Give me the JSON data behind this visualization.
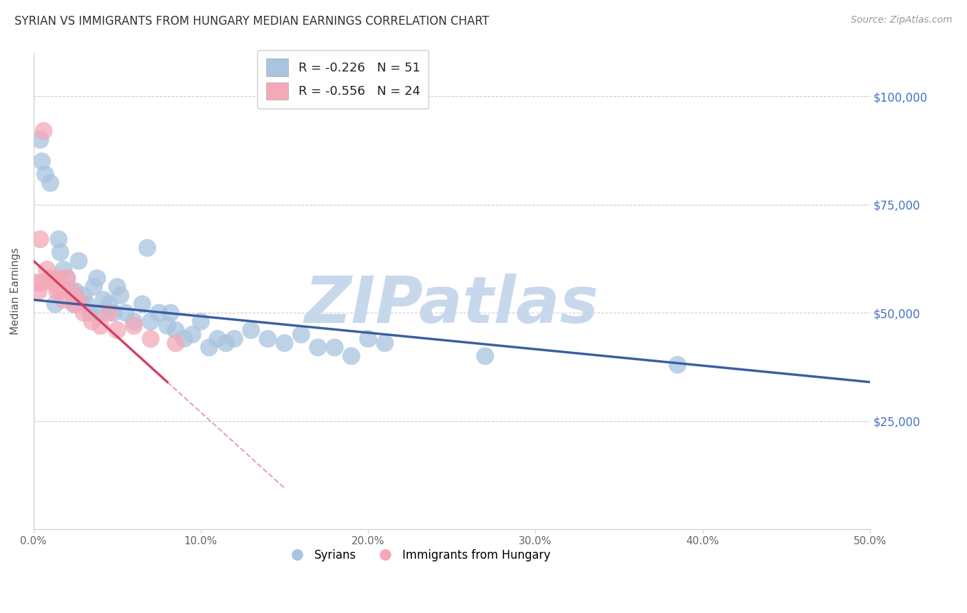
{
  "title": "SYRIAN VS IMMIGRANTS FROM HUNGARY MEDIAN EARNINGS CORRELATION CHART",
  "source": "Source: ZipAtlas.com",
  "ylabel": "Median Earnings",
  "xlim": [
    0.0,
    50.0
  ],
  "ylim": [
    0,
    110000
  ],
  "yticks": [
    0,
    25000,
    50000,
    75000,
    100000
  ],
  "ytick_labels": [
    "",
    "$25,000",
    "$50,000",
    "$75,000",
    "$100,000"
  ],
  "xticks": [
    0,
    10,
    20,
    30,
    40,
    50
  ],
  "xtick_labels": [
    "0.0%",
    "10.0%",
    "20.0%",
    "30.0%",
    "40.0%",
    "50.0%"
  ],
  "legend1_label": "R = -0.226   N = 51",
  "legend2_label": "R = -0.556   N = 24",
  "legend_labels": [
    "Syrians",
    "Immigrants from Hungary"
  ],
  "blue_color": "#a8c4e0",
  "pink_color": "#f4a8b8",
  "blue_line_color": "#3a5fa0",
  "pink_line_color": "#d44060",
  "watermark": "ZIPatlas",
  "watermark_color": "#c8d8ec",
  "title_color": "#333333",
  "right_tick_color": "#4472c4",
  "syrians_x": [
    0.4,
    0.5,
    0.7,
    1.0,
    1.3,
    1.5,
    1.6,
    1.8,
    2.0,
    2.2,
    2.4,
    2.5,
    2.7,
    3.0,
    3.2,
    3.4,
    3.6,
    4.0,
    4.2,
    4.5,
    4.8,
    5.0,
    5.5,
    6.0,
    6.5,
    7.0,
    7.5,
    8.0,
    8.5,
    9.0,
    9.5,
    10.0,
    10.5,
    11.0,
    12.0,
    13.0,
    14.0,
    15.0,
    16.0,
    17.0,
    18.0,
    19.0,
    20.0,
    21.0,
    27.0,
    38.5,
    5.2,
    3.8,
    6.8,
    8.2,
    11.5
  ],
  "syrians_y": [
    90000,
    85000,
    82000,
    80000,
    52000,
    67000,
    64000,
    60000,
    58000,
    55000,
    52000,
    55000,
    62000,
    54000,
    52000,
    50000,
    56000,
    50000,
    53000,
    52000,
    50000,
    56000,
    50000,
    48000,
    52000,
    48000,
    50000,
    47000,
    46000,
    44000,
    45000,
    48000,
    42000,
    44000,
    44000,
    46000,
    44000,
    43000,
    45000,
    42000,
    42000,
    40000,
    44000,
    43000,
    40000,
    38000,
    54000,
    58000,
    65000,
    50000,
    43000
  ],
  "hungary_x": [
    0.2,
    0.3,
    0.5,
    0.6,
    0.8,
    1.0,
    1.2,
    1.4,
    1.6,
    1.8,
    2.0,
    2.3,
    2.7,
    3.0,
    3.5,
    4.0,
    5.0,
    6.0,
    7.0,
    8.5,
    0.4,
    1.5,
    2.5,
    4.5
  ],
  "hungary_y": [
    57000,
    55000,
    57000,
    92000,
    60000,
    58000,
    57000,
    55000,
    55000,
    53000,
    58000,
    55000,
    53000,
    50000,
    48000,
    47000,
    46000,
    47000,
    44000,
    43000,
    67000,
    58000,
    52000,
    50000
  ],
  "blue_line_x0": 0.0,
  "blue_line_y0": 53000,
  "blue_line_x1": 50.0,
  "blue_line_y1": 34000,
  "pink_line_x0": 0.0,
  "pink_line_y0": 62000,
  "pink_line_x1": 8.0,
  "pink_line_y1": 34000,
  "pink_dash_x0": 8.0,
  "pink_dash_y0": 34000,
  "pink_dash_x1": 15.0,
  "pink_dash_y1": 9500
}
